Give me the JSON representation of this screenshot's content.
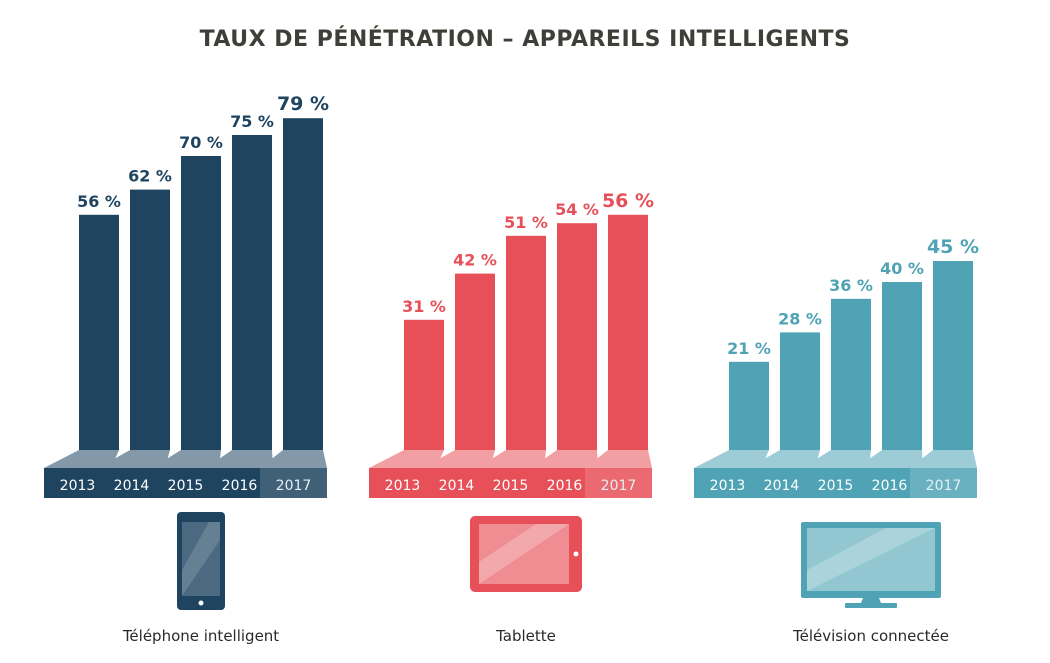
{
  "colors": {
    "smartphone": "#1e4460",
    "tablet": "#e75058",
    "tv": "#4fa3b5",
    "title": "#3f3f3a"
  },
  "chart_data": {
    "type": "bar",
    "title": "TAUX DE PÉNÉTRATION – APPAREILS INTELLIGENTS",
    "categories": [
      "2013",
      "2014",
      "2015",
      "2016",
      "2017"
    ],
    "ylim": [
      0,
      100
    ],
    "series": [
      {
        "name": "Téléphone intelligent",
        "values": [
          56,
          62,
          70,
          75,
          79
        ],
        "labels": [
          "56 %",
          "62 %",
          "70 %",
          "75 %",
          "79 %"
        ],
        "icon": "smartphone-icon"
      },
      {
        "name": "Tablette",
        "values": [
          31,
          42,
          51,
          54,
          56
        ],
        "labels": [
          "31 %",
          "42 %",
          "51 %",
          "54 %",
          "56 %"
        ],
        "icon": "tablet-icon"
      },
      {
        "name": "Télévision connectée",
        "values": [
          21,
          28,
          36,
          40,
          45
        ],
        "labels": [
          "21 %",
          "28 %",
          "36 %",
          "40 %",
          "45 %"
        ],
        "icon": "tv-icon"
      }
    ]
  }
}
